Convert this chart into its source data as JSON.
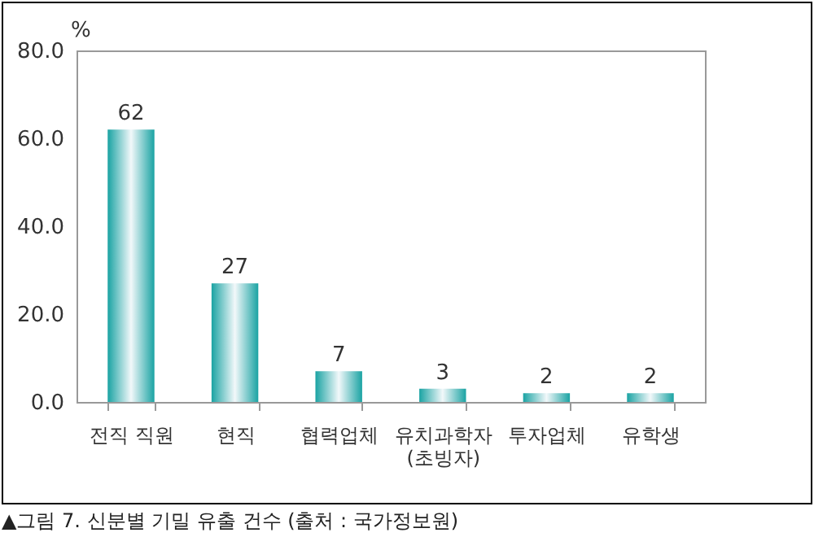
{
  "chart_data": {
    "type": "bar",
    "categories": [
      "전직 직원",
      "현직",
      "협력업체",
      "유치과학자\n(초빙자)",
      "투자업체",
      "유학생"
    ],
    "values": [
      62,
      27,
      7,
      3,
      2,
      2
    ],
    "color": "#1aa3a3",
    "data_labels": true,
    "ylabel": "%",
    "ylim": [
      0,
      80
    ],
    "yticks": [
      {
        "value": 0,
        "label": "0.0"
      },
      {
        "value": 20,
        "label": "20.0"
      },
      {
        "value": 40,
        "label": "40.0"
      },
      {
        "value": 60,
        "label": "60.0"
      },
      {
        "value": 80,
        "label": "80.0"
      }
    ],
    "grid": false,
    "annotations": [
      "▲그림 7. 신분별 기밀 유출 건수 (출처 : 국가정보원)"
    ]
  }
}
